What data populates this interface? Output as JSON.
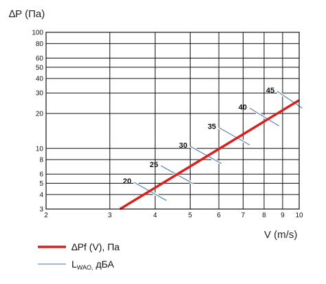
{
  "chart_data": {
    "type": "line",
    "ylabel": "∆P (Па)",
    "xlabel": "V (m/s)",
    "x_scale": "log",
    "y_scale": "log",
    "xlim": [
      2,
      10
    ],
    "ylim": [
      3,
      100
    ],
    "x_ticks": [
      2,
      3,
      4,
      5,
      6,
      7,
      8,
      9,
      10
    ],
    "y_ticks": [
      3,
      4,
      5,
      6,
      8,
      10,
      20,
      30,
      40,
      50,
      60,
      80,
      100
    ],
    "grid": true,
    "series": [
      {
        "name": "∆Pf (V), Па",
        "color": "#d8201f",
        "x": [
          3.2,
          10
        ],
        "y": [
          3,
          26
        ]
      }
    ],
    "noise_lines": {
      "color": "#6e93b4",
      "legend_main": "L",
      "legend_sub": "WAO,",
      "legend_suffix": " дБА",
      "levels": [
        {
          "label": "20",
          "x": [
            3.5,
            4.3
          ],
          "y": [
            5.1,
            3.55
          ]
        },
        {
          "label": "25",
          "x": [
            4.15,
            5.1
          ],
          "y": [
            7.1,
            4.95
          ]
        },
        {
          "label": "30",
          "x": [
            5.0,
            6.1
          ],
          "y": [
            10.4,
            7.4
          ]
        },
        {
          "label": "35",
          "x": [
            6.0,
            7.3
          ],
          "y": [
            15.1,
            10.7
          ]
        },
        {
          "label": "40",
          "x": [
            7.3,
            8.8
          ],
          "y": [
            22.2,
            15.6
          ]
        },
        {
          "label": "45",
          "x": [
            8.7,
            10.2
          ],
          "y": [
            31.0,
            22.2
          ]
        }
      ]
    },
    "legend": "bottom-left"
  }
}
